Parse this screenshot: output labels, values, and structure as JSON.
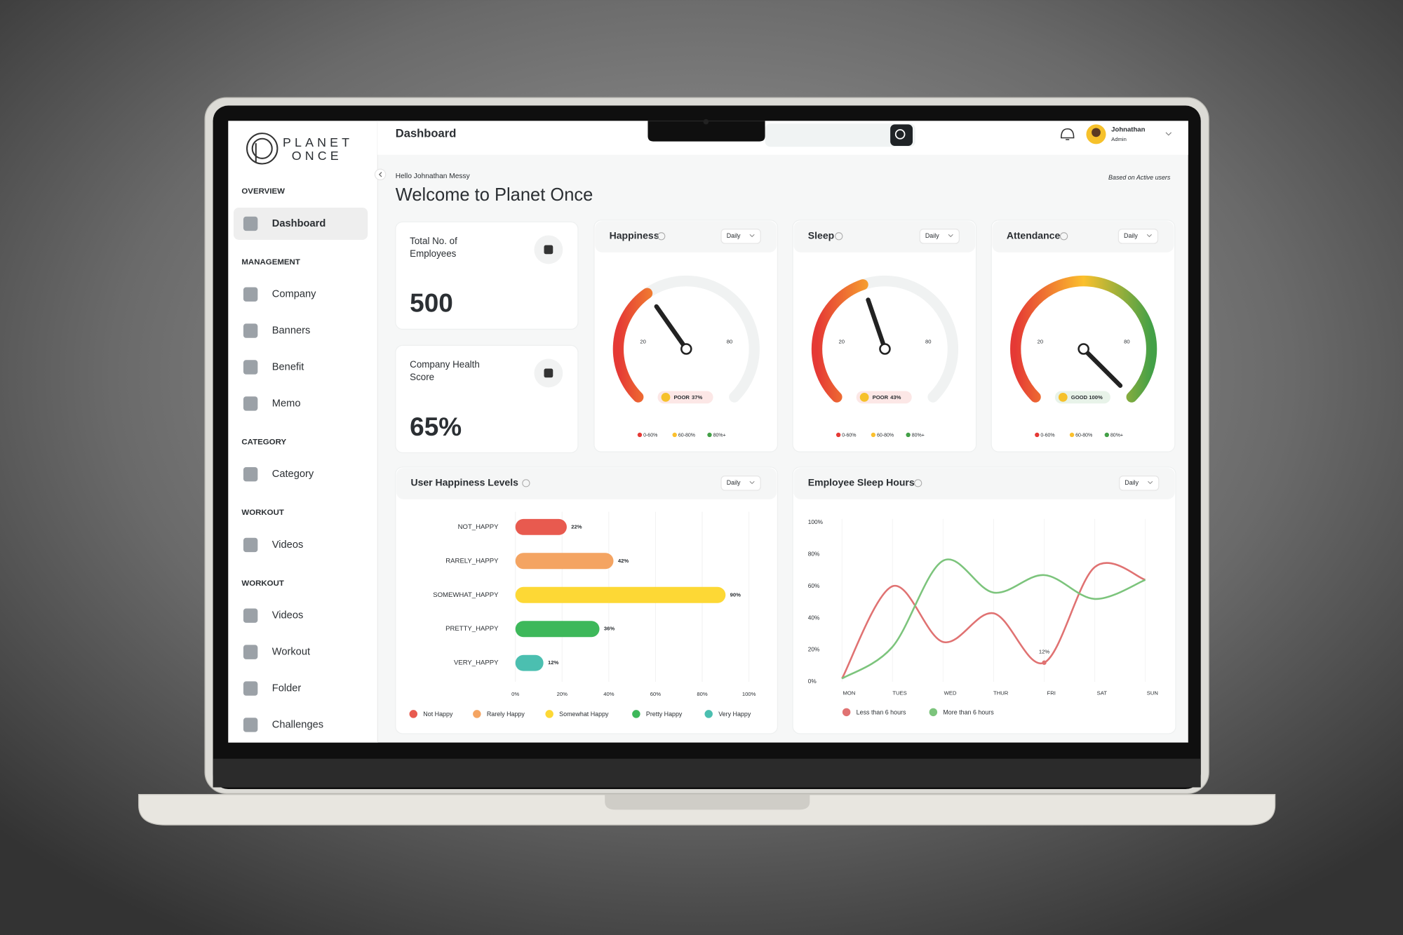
{
  "header": {
    "title": "Dashboard",
    "user_name": "Johnathan",
    "user_role": "Admin"
  },
  "sidebar": {
    "logo": [
      "PLANET",
      "ONCE"
    ],
    "sections": [
      {
        "title": "OVERVIEW",
        "items": [
          "Dashboard"
        ]
      },
      {
        "title": "MANAGEMENT",
        "items": [
          "Company",
          "Banners",
          "Benefit",
          "Memo"
        ]
      },
      {
        "title": "CATEGORY",
        "items": [
          "Category"
        ]
      },
      {
        "title": "WORKOUT",
        "items": [
          "Videos"
        ]
      },
      {
        "title": "WORKOUT",
        "items": [
          "Videos",
          "Workout",
          "Folder",
          "Challenges"
        ]
      }
    ]
  },
  "welcome": {
    "greeting": "Hello Johnathan Messy",
    "title": "Welcome to Planet Once",
    "note": "Based on Active users"
  },
  "stats": [
    {
      "label": [
        "Total No. of",
        "Employees"
      ],
      "value": "500"
    },
    {
      "label": [
        "Company Health",
        "Score"
      ],
      "value": "65%"
    }
  ],
  "gauges": [
    {
      "type": "gauge",
      "title": "Happiness",
      "period": "Daily",
      "lim": [
        0,
        100
      ],
      "value": 37,
      "value_label": "37%",
      "status": "POOR",
      "status_color": "#e53935",
      "ticks": [
        20,
        80
      ],
      "legend": [
        "0-60%",
        "60-80%",
        "80%+"
      ],
      "legend_colors": [
        "#e53935",
        "#fbc02d",
        "#43a047"
      ]
    },
    {
      "type": "gauge",
      "title": "Sleep",
      "period": "Daily",
      "lim": [
        0,
        100
      ],
      "value": 43,
      "value_label": "43%",
      "status": "POOR",
      "status_color": "#e53935",
      "ticks": [
        20,
        80
      ],
      "legend": [
        "0-60%",
        "60-80%",
        "80%+"
      ],
      "legend_colors": [
        "#e53935",
        "#fbc02d",
        "#43a047"
      ]
    },
    {
      "type": "gauge",
      "title": "Attendance",
      "period": "Daily",
      "lim": [
        0,
        100
      ],
      "value": 100,
      "value_label": "100%",
      "status": "GOOD",
      "status_color": "#43a047",
      "ticks": [
        20,
        80
      ],
      "legend": [
        "0-60%",
        "60-80%",
        "80%+"
      ],
      "legend_colors": [
        "#e53935",
        "#fbc02d",
        "#43a047"
      ]
    }
  ],
  "happiness_chart": {
    "type": "bar",
    "title": "User Happiness Levels",
    "period": "Daily",
    "categories": [
      "NOT_HAPPY",
      "RARELY_HAPPY",
      "SOMEWHAT_HAPPY",
      "PRETTY_HAPPY",
      "VERY_HAPPY"
    ],
    "values": [
      22,
      42,
      90,
      36,
      12
    ],
    "value_labels": [
      "22%",
      "42%",
      "90%",
      "36%",
      "12%"
    ],
    "colors": [
      "#e85a4f",
      "#f4a462",
      "#fdd835",
      "#3db85a",
      "#4bbfb0"
    ],
    "legend": [
      "Not Happy",
      "Rarely Happy",
      "Somewhat Happy",
      "Pretty Happy",
      "Very Happy"
    ],
    "xlim": [
      0,
      100
    ],
    "xticks": [
      {
        "value": 0,
        "label": "0%"
      },
      {
        "value": 20,
        "label": "20%"
      },
      {
        "value": 40,
        "label": "40%"
      },
      {
        "value": 60,
        "label": "60%"
      },
      {
        "value": 80,
        "label": "80%"
      },
      {
        "value": 100,
        "label": "100%"
      }
    ],
    "grid": true
  },
  "sleep_chart": {
    "type": "line",
    "title": "Employee Sleep Hours",
    "period": "Daily",
    "categories": [
      "MON",
      "TUES",
      "WED",
      "THUR",
      "FRI",
      "SAT",
      "SUN"
    ],
    "series": [
      {
        "name": "Less than 6 hours",
        "color": "#e07272",
        "values": [
          2,
          60,
          25,
          43,
          12,
          72,
          64
        ],
        "value_labels": [
          null,
          null,
          null,
          null,
          "12%",
          null,
          null
        ]
      },
      {
        "name": "More than 6 hours",
        "color": "#7cc47c",
        "values": [
          2,
          22,
          76,
          56,
          67,
          52,
          64
        ]
      }
    ],
    "ylim": [
      0,
      100
    ],
    "yticks": [
      {
        "value": 0,
        "label": "0%"
      },
      {
        "value": 20,
        "label": "20%"
      },
      {
        "value": 40,
        "label": "40%"
      },
      {
        "value": 60,
        "label": "60%"
      },
      {
        "value": 80,
        "label": "80%"
      },
      {
        "value": 100,
        "label": "100%"
      }
    ]
  }
}
